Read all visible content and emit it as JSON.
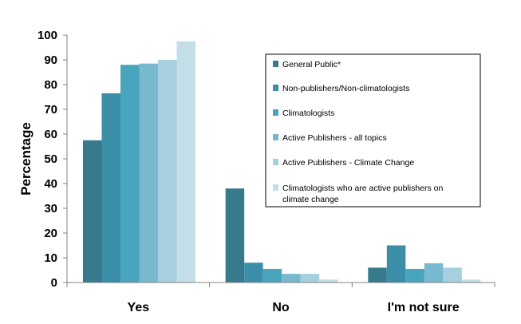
{
  "chart_data": {
    "type": "bar",
    "title": "",
    "xlabel": "",
    "ylabel": "Percentage",
    "ylim": [
      0,
      100
    ],
    "yticks": [
      0,
      10,
      20,
      30,
      40,
      50,
      60,
      70,
      80,
      90,
      100
    ],
    "categories": [
      "Yes",
      "No",
      "I'm not sure"
    ],
    "grid": false,
    "legend_position": "top-right",
    "series": [
      {
        "name": "General Public*",
        "color": "#367a8c",
        "values": [
          57.5,
          38,
          6
        ]
      },
      {
        "name": "Non-publishers/Non-climatologists",
        "color": "#3a8ea8",
        "values": [
          76.5,
          8,
          15
        ]
      },
      {
        "name": "Climatologists",
        "color": "#49a5be",
        "values": [
          88,
          5.5,
          5.5
        ]
      },
      {
        "name": "Active Publishers - all topics",
        "color": "#79b9cf",
        "values": [
          88.5,
          3.5,
          7.8
        ]
      },
      {
        "name": "Active Publishers - Climate  Change",
        "color": "#a6cfdf",
        "values": [
          90,
          3.5,
          6
        ]
      },
      {
        "name": "Climatologists  who are active publishers on climate change",
        "color": "#c4dee8",
        "values": [
          97.5,
          1.2,
          1.2
        ]
      }
    ]
  }
}
